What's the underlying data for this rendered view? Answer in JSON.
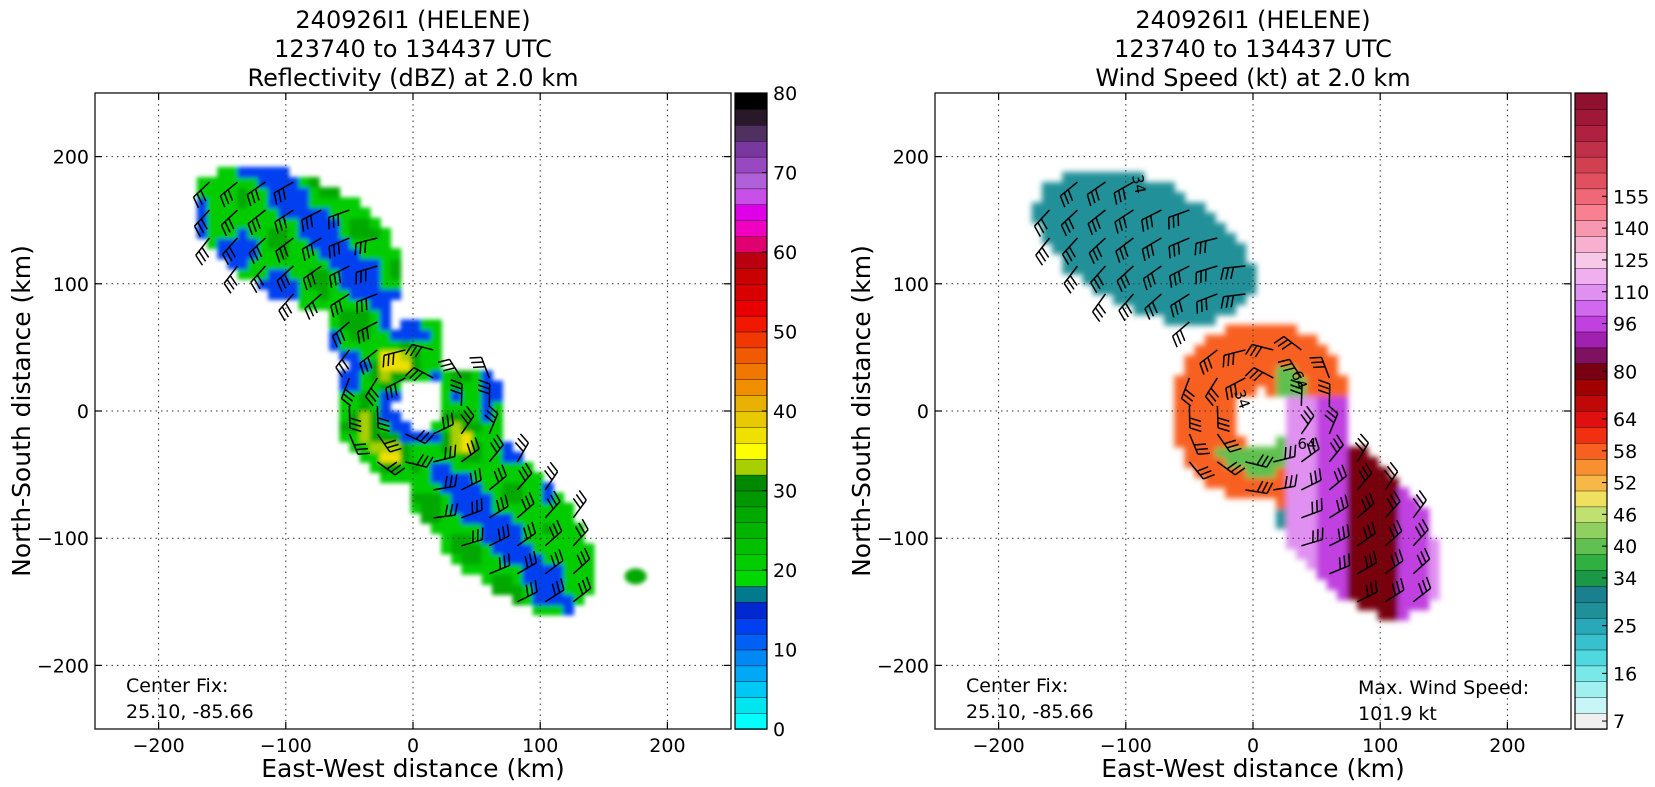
{
  "chart_data": [
    {
      "type": "heatmap",
      "title_lines": [
        "240926I1 (HELENE)",
        "123740 to 134437 UTC",
        "Reflectivity (dBZ) at 2.0 km"
      ],
      "xlabel": "East-West distance (km)",
      "ylabel": "North-South distance (km)",
      "xlim": [
        -250,
        250
      ],
      "ylim": [
        -250,
        250
      ],
      "xticks": [
        -200,
        -100,
        0,
        100,
        200
      ],
      "yticks": [
        -200,
        -100,
        0,
        100,
        200
      ],
      "grid": true,
      "annotation_left": [
        "Center Fix:",
        "25.10, -85.66"
      ],
      "colorbar": {
        "min": 0,
        "max": 80,
        "ticks": [
          0,
          10,
          20,
          30,
          40,
          50,
          60,
          70,
          80
        ],
        "colors": [
          "#00ffff",
          "#00e5f0",
          "#00c8f5",
          "#00a8f5",
          "#0088f5",
          "#0060f5",
          "#0040f0",
          "#0028d0",
          "#007a8c",
          "#00d800",
          "#00cc00",
          "#00c000",
          "#00b400",
          "#00a800",
          "#009800",
          "#008800",
          "#a8d000",
          "#ffff00",
          "#f0e000",
          "#e8c800",
          "#e8b000",
          "#f09000",
          "#f07800",
          "#f05a00",
          "#f03800",
          "#f01800",
          "#e80000",
          "#d80000",
          "#c80000",
          "#b80010",
          "#e00070",
          "#f000c0",
          "#e000e8",
          "#c850e8",
          "#b060d8",
          "#9848c0",
          "#7838a0",
          "#503060",
          "#281828",
          "#000000"
        ]
      },
      "colormap": [
        {
          "value": 8,
          "color": "#0040f0"
        },
        {
          "value": 18,
          "color": "#00cc00"
        },
        {
          "value": 28,
          "color": "#00a800"
        },
        {
          "value": 35,
          "color": "#a8d000"
        },
        {
          "value": 40,
          "color": "#f0e000"
        }
      ]
    },
    {
      "type": "heatmap",
      "title_lines": [
        "240926I1 (HELENE)",
        "123740 to 134437 UTC",
        "Wind Speed (kt) at 2.0 km"
      ],
      "xlabel": "East-West distance (km)",
      "ylabel": "North-South distance (km)",
      "xlim": [
        -250,
        250
      ],
      "ylim": [
        -250,
        250
      ],
      "xticks": [
        -200,
        -100,
        0,
        100,
        200
      ],
      "yticks": [
        -200,
        -100,
        0,
        100,
        200
      ],
      "grid": true,
      "annotation_left": [
        "Center Fix:",
        "25.10, -85.66"
      ],
      "annotation_right": [
        "Max. Wind Speed:",
        "101.9 kt"
      ],
      "contour_labels": [
        "34",
        "34",
        "64",
        "64"
      ],
      "colorbar": {
        "tick_labels": [
          "7",
          "16",
          "25",
          "34",
          "40",
          "46",
          "52",
          "58",
          "64",
          "80",
          "96",
          "110",
          "125",
          "140",
          "155"
        ],
        "tick_bins": [
          0,
          3,
          6,
          9,
          11,
          13,
          15,
          17,
          19,
          22,
          25,
          27,
          29,
          31,
          33
        ],
        "colors": [
          "#f0f0f0",
          "#c8f5f5",
          "#a0f0f0",
          "#78e8e8",
          "#50d8e0",
          "#38c0cc",
          "#28a8b8",
          "#209098",
          "#1a8090",
          "#1a9848",
          "#30b040",
          "#60c050",
          "#90d060",
          "#c0e070",
          "#f0e060",
          "#f8b848",
          "#f89030",
          "#f86020",
          "#f03010",
          "#e01010",
          "#c00808",
          "#a00000",
          "#780010",
          "#801060",
          "#a020b0",
          "#c040e0",
          "#d068f0",
          "#e090f0",
          "#f0b0f0",
          "#f8c8e8",
          "#f8b0d0",
          "#f898b0",
          "#f88090",
          "#f06878",
          "#e05060",
          "#d04050",
          "#c03048",
          "#b02040",
          "#a01838",
          "#901030"
        ]
      },
      "colormap": [
        {
          "value": 25,
          "color": "#209098"
        },
        {
          "value": 30,
          "color": "#1a8090"
        },
        {
          "value": 38,
          "color": "#60c050"
        },
        {
          "value": 46,
          "color": "#f0e060"
        },
        {
          "value": 54,
          "color": "#f86020"
        },
        {
          "value": 60,
          "color": "#c00808"
        },
        {
          "value": 64,
          "color": "#780010"
        },
        {
          "value": 80,
          "color": "#c040e0"
        },
        {
          "value": 92,
          "color": "#e090f0"
        }
      ]
    }
  ]
}
